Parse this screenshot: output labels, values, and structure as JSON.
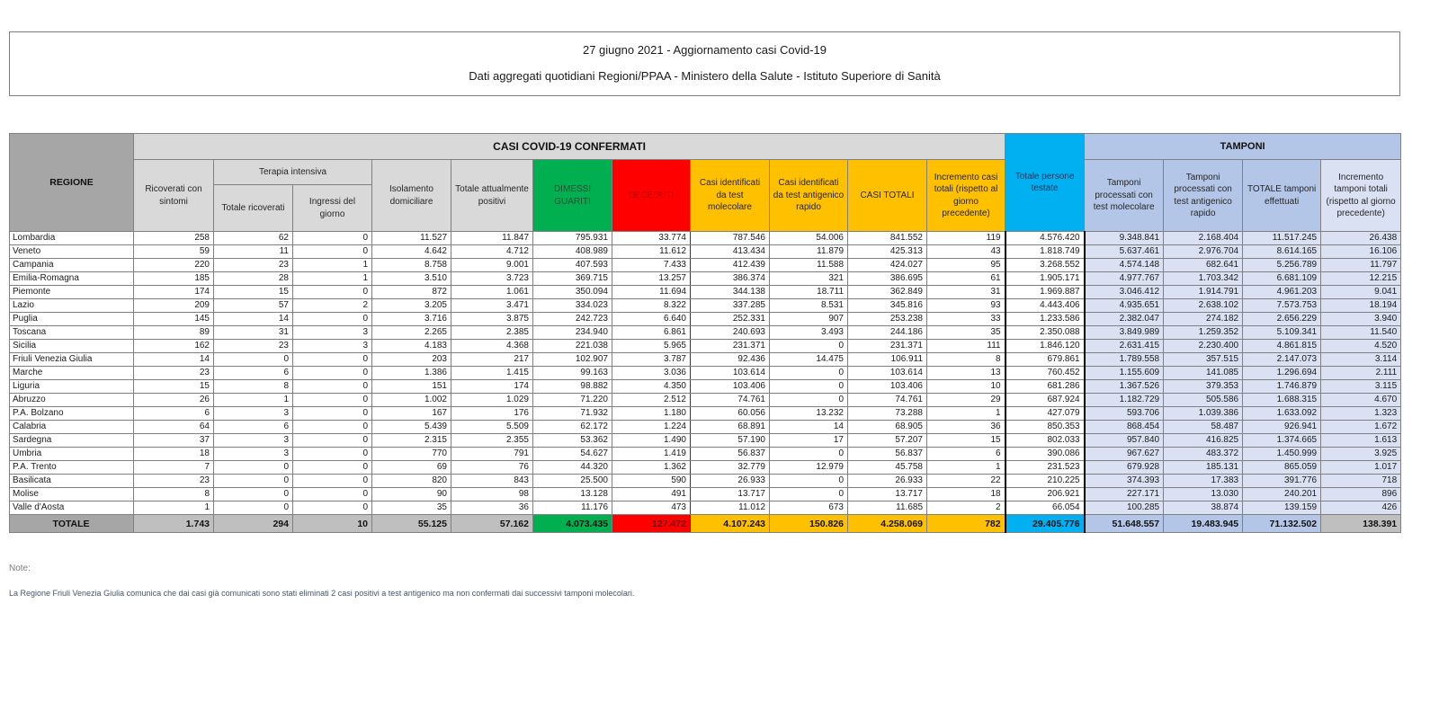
{
  "title": {
    "line1": "27 giugno 2021 - Aggiornamento casi Covid-19",
    "line2": "Dati aggregati quotidiani Regioni/PPAA - Ministero della Salute - Istituto Superiore di Sanità"
  },
  "table": {
    "headers": {
      "region": "REGIONE",
      "casi_group": "CASI COVID-19 CONFERMATI",
      "tamponi_group": "TAMPONI",
      "terapia_group": "Terapia intensiva",
      "cols": {
        "ricoverati": "Ricoverati con sintomi",
        "ti_totale": "Totale ricoverati",
        "ti_ingressi": "Ingressi del giorno",
        "isolamento": "Isolamento domiciliare",
        "att_positivi": "Totale attualmente positivi",
        "dimessi": "DIMESSI GUARITI",
        "deceduti": "DECEDUTI",
        "casi_mol": "Casi identificati da test molecolare",
        "casi_ant": "Casi identificati da test antigenico rapido",
        "casi_totali": "CASI TOTALI",
        "incr_casi": "Incremento casi totali (rispetto al giorno precedente)",
        "testate": "Totale persone testate",
        "tamp_mol": "Tamponi processati con test molecolare",
        "tamp_ant": "Tamponi processati con test antigenico rapido",
        "tamp_tot": "TOTALE tamponi effettuati",
        "incr_tamp": "Incremento tamponi totali (rispetto al giorno precedente)"
      }
    },
    "rows": [
      {
        "region": "Lombardia",
        "values": [
          "258",
          "62",
          "0",
          "11.527",
          "11.847",
          "795.931",
          "33.774",
          "787.546",
          "54.006",
          "841.552",
          "119",
          "4.576.420",
          "9.348.841",
          "2.168.404",
          "11.517.245",
          "26.438"
        ]
      },
      {
        "region": "Veneto",
        "values": [
          "59",
          "11",
          "0",
          "4.642",
          "4.712",
          "408.989",
          "11.612",
          "413.434",
          "11.879",
          "425.313",
          "43",
          "1.818.749",
          "5.637.461",
          "2.976.704",
          "8.614.165",
          "16.106"
        ]
      },
      {
        "region": "Campania",
        "values": [
          "220",
          "23",
          "1",
          "8.758",
          "9.001",
          "407.593",
          "7.433",
          "412.439",
          "11.588",
          "424.027",
          "95",
          "3.268.552",
          "4.574.148",
          "682.641",
          "5.256.789",
          "11.797"
        ]
      },
      {
        "region": "Emilia-Romagna",
        "values": [
          "185",
          "28",
          "1",
          "3.510",
          "3.723",
          "369.715",
          "13.257",
          "386.374",
          "321",
          "386.695",
          "61",
          "1.905.171",
          "4.977.767",
          "1.703.342",
          "6.681.109",
          "12.215"
        ]
      },
      {
        "region": "Piemonte",
        "values": [
          "174",
          "15",
          "0",
          "872",
          "1.061",
          "350.094",
          "11.694",
          "344.138",
          "18.711",
          "362.849",
          "31",
          "1.969.887",
          "3.046.412",
          "1.914.791",
          "4.961.203",
          "9.041"
        ]
      },
      {
        "region": "Lazio",
        "values": [
          "209",
          "57",
          "2",
          "3.205",
          "3.471",
          "334.023",
          "8.322",
          "337.285",
          "8.531",
          "345.816",
          "93",
          "4.443.406",
          "4.935.651",
          "2.638.102",
          "7.573.753",
          "18.194"
        ]
      },
      {
        "region": "Puglia",
        "values": [
          "145",
          "14",
          "0",
          "3.716",
          "3.875",
          "242.723",
          "6.640",
          "252.331",
          "907",
          "253.238",
          "33",
          "1.233.586",
          "2.382.047",
          "274.182",
          "2.656.229",
          "3.940"
        ]
      },
      {
        "region": "Toscana",
        "values": [
          "89",
          "31",
          "3",
          "2.265",
          "2.385",
          "234.940",
          "6.861",
          "240.693",
          "3.493",
          "244.186",
          "35",
          "2.350.088",
          "3.849.989",
          "1.259.352",
          "5.109.341",
          "11.540"
        ]
      },
      {
        "region": "Sicilia",
        "values": [
          "162",
          "23",
          "3",
          "4.183",
          "4.368",
          "221.038",
          "5.965",
          "231.371",
          "0",
          "231.371",
          "111",
          "1.846.120",
          "2.631.415",
          "2.230.400",
          "4.861.815",
          "4.520"
        ]
      },
      {
        "region": "Friuli Venezia Giulia",
        "values": [
          "14",
          "0",
          "0",
          "203",
          "217",
          "102.907",
          "3.787",
          "92.436",
          "14.475",
          "106.911",
          "8",
          "679.861",
          "1.789.558",
          "357.515",
          "2.147.073",
          "3.114"
        ]
      },
      {
        "region": "Marche",
        "values": [
          "23",
          "6",
          "0",
          "1.386",
          "1.415",
          "99.163",
          "3.036",
          "103.614",
          "0",
          "103.614",
          "13",
          "760.452",
          "1.155.609",
          "141.085",
          "1.296.694",
          "2.111"
        ]
      },
      {
        "region": "Liguria",
        "values": [
          "15",
          "8",
          "0",
          "151",
          "174",
          "98.882",
          "4.350",
          "103.406",
          "0",
          "103.406",
          "10",
          "681.286",
          "1.367.526",
          "379.353",
          "1.746.879",
          "3.115"
        ]
      },
      {
        "region": "Abruzzo",
        "values": [
          "26",
          "1",
          "0",
          "1.002",
          "1.029",
          "71.220",
          "2.512",
          "74.761",
          "0",
          "74.761",
          "29",
          "687.924",
          "1.182.729",
          "505.586",
          "1.688.315",
          "4.670"
        ]
      },
      {
        "region": "P.A. Bolzano",
        "values": [
          "6",
          "3",
          "0",
          "167",
          "176",
          "71.932",
          "1.180",
          "60.056",
          "13.232",
          "73.288",
          "1",
          "427.079",
          "593.706",
          "1.039.386",
          "1.633.092",
          "1.323"
        ]
      },
      {
        "region": "Calabria",
        "values": [
          "64",
          "6",
          "0",
          "5.439",
          "5.509",
          "62.172",
          "1.224",
          "68.891",
          "14",
          "68.905",
          "36",
          "850.353",
          "868.454",
          "58.487",
          "926.941",
          "1.672"
        ]
      },
      {
        "region": "Sardegna",
        "values": [
          "37",
          "3",
          "0",
          "2.315",
          "2.355",
          "53.362",
          "1.490",
          "57.190",
          "17",
          "57.207",
          "15",
          "802.033",
          "957.840",
          "416.825",
          "1.374.665",
          "1.613"
        ]
      },
      {
        "region": "Umbria",
        "values": [
          "18",
          "3",
          "0",
          "770",
          "791",
          "54.627",
          "1.419",
          "56.837",
          "0",
          "56.837",
          "6",
          "390.086",
          "967.627",
          "483.372",
          "1.450.999",
          "3.925"
        ]
      },
      {
        "region": "P.A. Trento",
        "values": [
          "7",
          "0",
          "0",
          "69",
          "76",
          "44.320",
          "1.362",
          "32.779",
          "12.979",
          "45.758",
          "1",
          "231.523",
          "679.928",
          "185.131",
          "865.059",
          "1.017"
        ]
      },
      {
        "region": "Basilicata",
        "values": [
          "23",
          "0",
          "0",
          "820",
          "843",
          "25.500",
          "590",
          "26.933",
          "0",
          "26.933",
          "22",
          "210.225",
          "374.393",
          "17.383",
          "391.776",
          "718"
        ]
      },
      {
        "region": "Molise",
        "values": [
          "8",
          "0",
          "0",
          "90",
          "98",
          "13.128",
          "491",
          "13.717",
          "0",
          "13.717",
          "18",
          "206.921",
          "227.171",
          "13.030",
          "240.201",
          "896"
        ]
      },
      {
        "region": "Valle d'Aosta",
        "values": [
          "1",
          "0",
          "0",
          "35",
          "36",
          "11.176",
          "473",
          "11.012",
          "673",
          "11.685",
          "2",
          "66.054",
          "100.285",
          "38.874",
          "139.159",
          "426"
        ]
      }
    ],
    "total": {
      "label": "TOTALE",
      "values": [
        "1.743",
        "294",
        "10",
        "55.125",
        "57.162",
        "4.073.435",
        "127.472",
        "4.107.243",
        "150.826",
        "4.258.069",
        "782",
        "29.405.776",
        "51.648.557",
        "19.483.945",
        "71.132.502",
        "138.391"
      ]
    }
  },
  "notes": {
    "label": "Note:",
    "text": "La Regione Friuli Venezia Giulia comunica che dai casi già comunicati sono stati eliminati 2 casi positivi a test antigenico ma non confermati dai successivi tamponi molecolari."
  },
  "colors": {
    "green": "#00B050",
    "red": "#FF0000",
    "gold": "#FFC000",
    "cyan": "#00B0F0",
    "tamponi_header_blue": "#B4C6E7",
    "tamponi_cell_blue": "#D9E1F2",
    "header_grey": "#D9D9D9",
    "dark_grey": "#A6A6A6",
    "total_row_grey": "#BFBFBF"
  }
}
